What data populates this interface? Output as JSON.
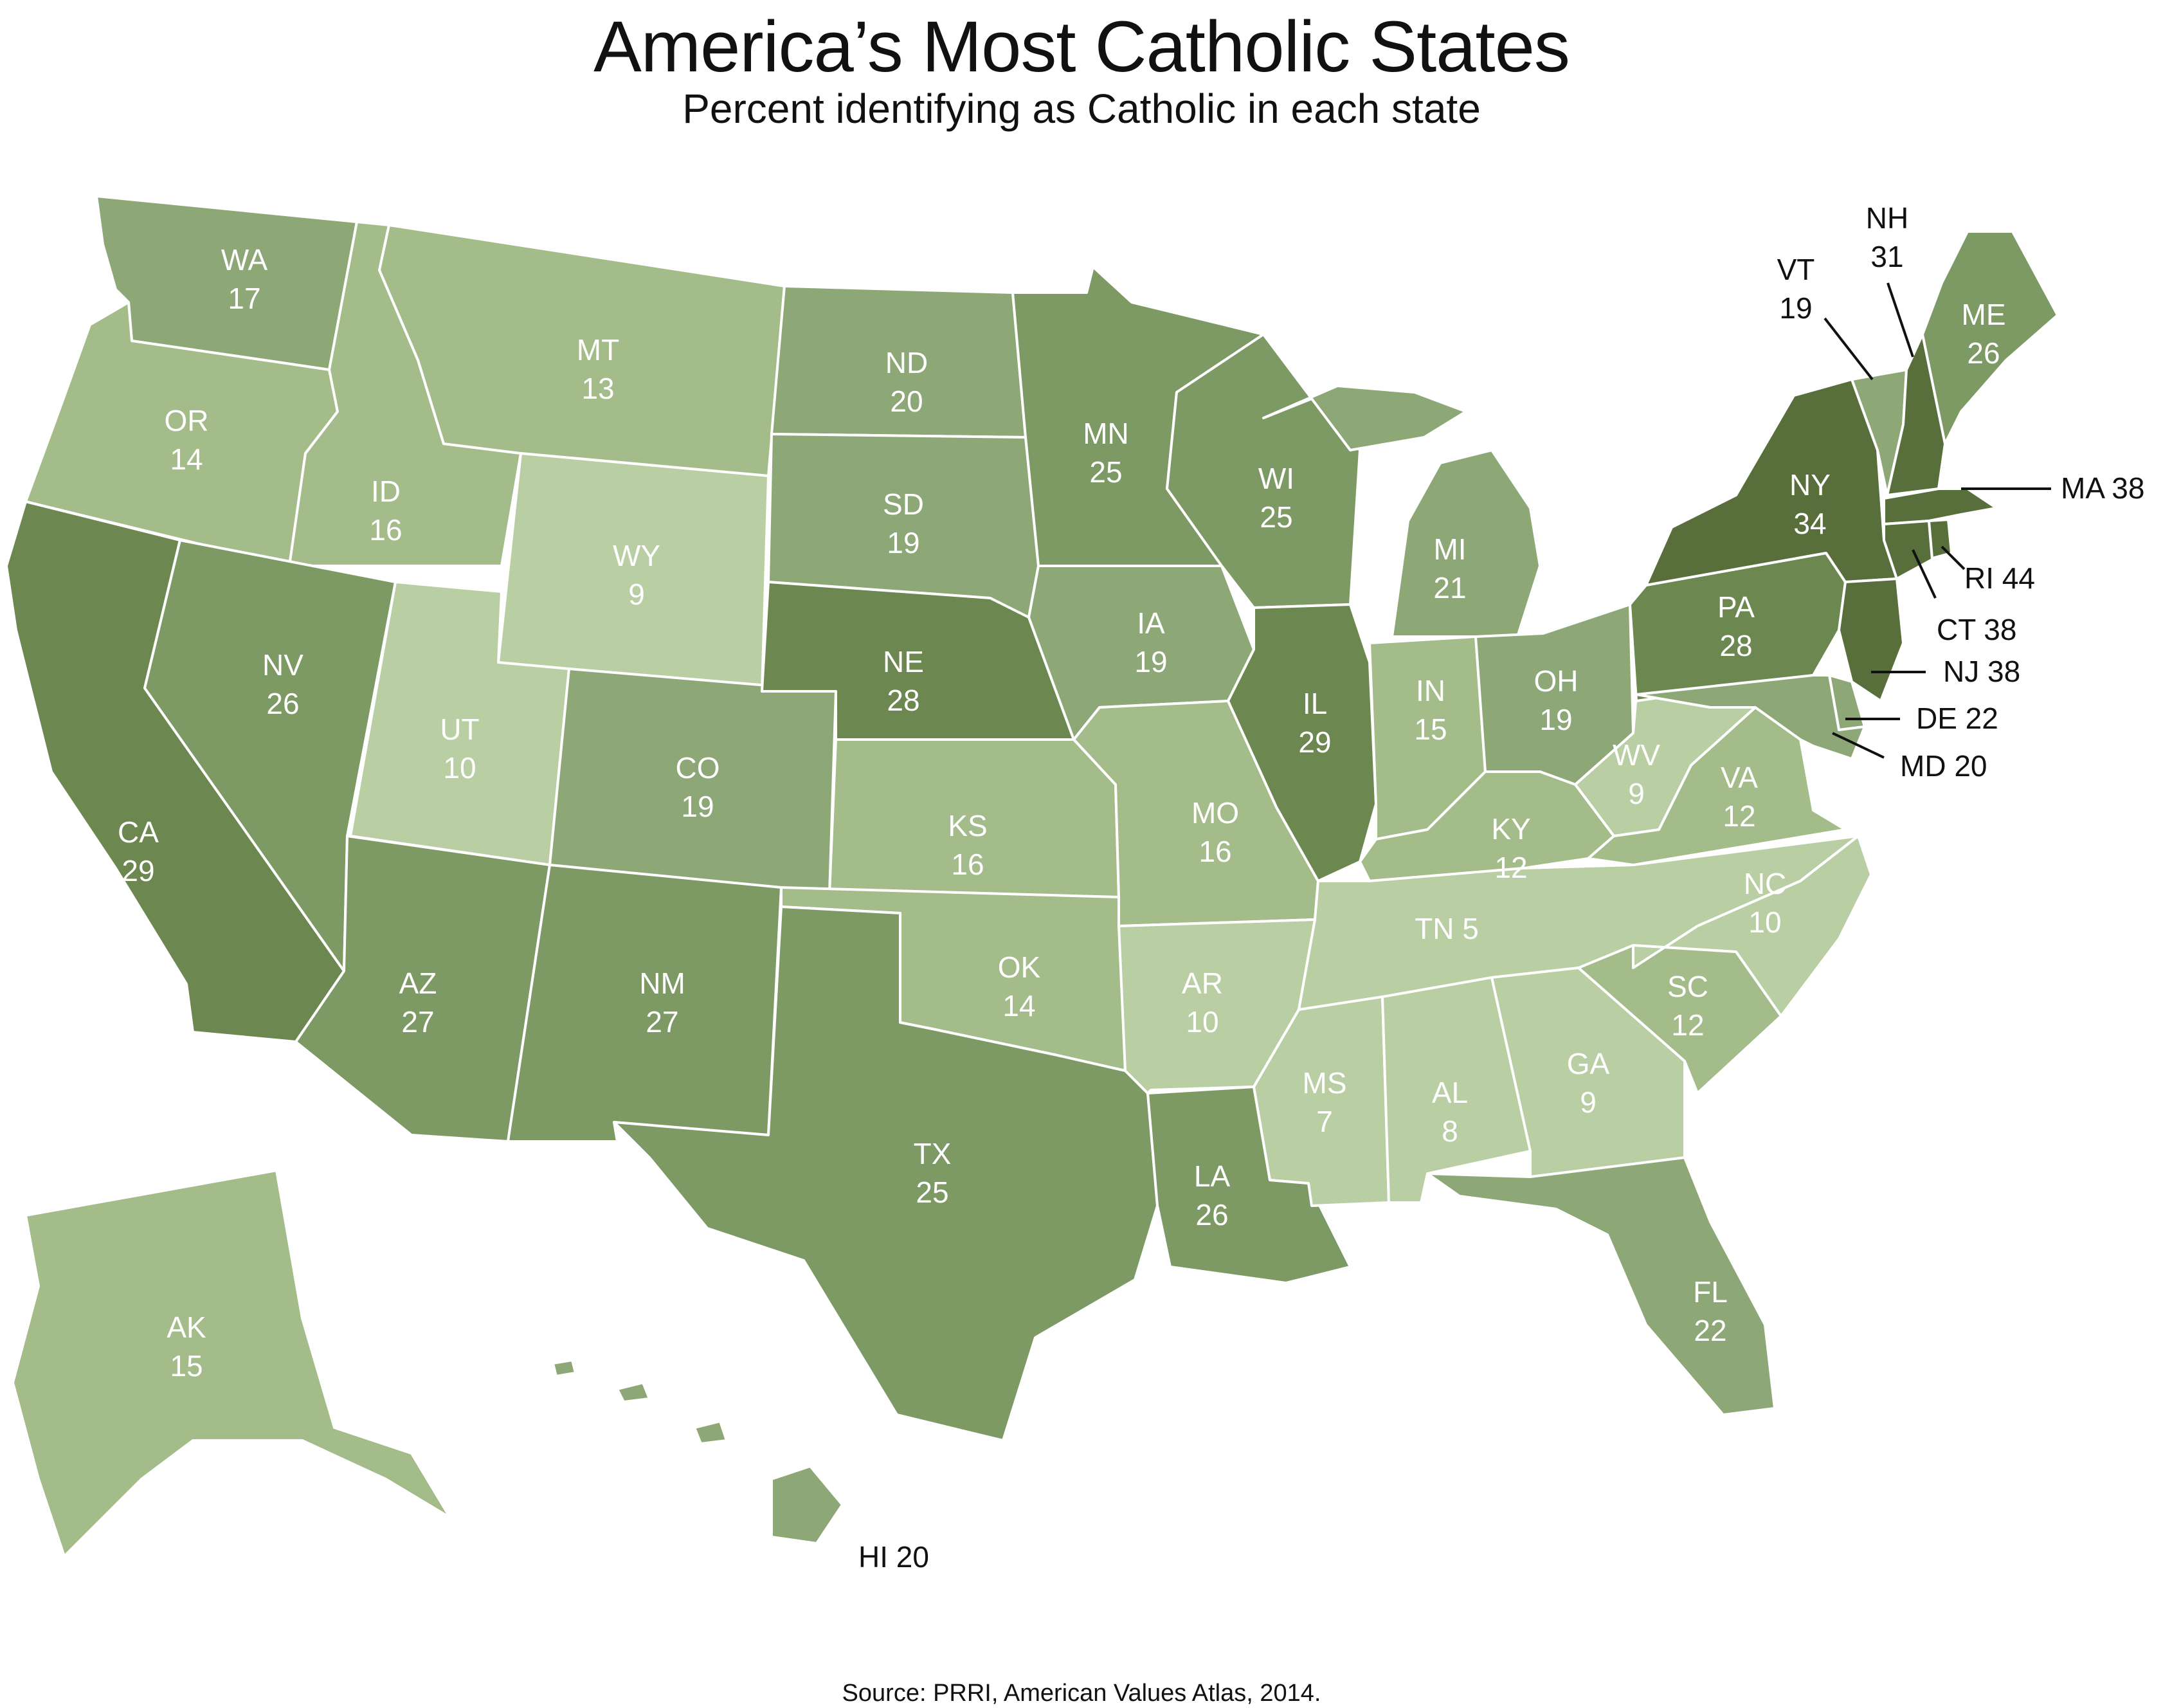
{
  "title": "America’s Most Catholic States",
  "subtitle": "Percent identifying as Catholic in each state",
  "source": "Source: PRRI, American Values Atlas, 2014.",
  "colors": {
    "lightest": "#b9cea3",
    "light": "#a4bb8a",
    "mid": "#8ea777",
    "dark": "#7d9964",
    "darker": "#6c874f",
    "darkest": "#586f3c"
  },
  "states": [
    {
      "abbr": "WA",
      "value": "17"
    },
    {
      "abbr": "OR",
      "value": "14"
    },
    {
      "abbr": "CA",
      "value": "29"
    },
    {
      "abbr": "ID",
      "value": "16"
    },
    {
      "abbr": "NV",
      "value": "26"
    },
    {
      "abbr": "MT",
      "value": "13"
    },
    {
      "abbr": "WY",
      "value": "9"
    },
    {
      "abbr": "UT",
      "value": "10"
    },
    {
      "abbr": "AZ",
      "value": "27"
    },
    {
      "abbr": "CO",
      "value": "19"
    },
    {
      "abbr": "NM",
      "value": "27"
    },
    {
      "abbr": "ND",
      "value": "20"
    },
    {
      "abbr": "SD",
      "value": "19"
    },
    {
      "abbr": "NE",
      "value": "28"
    },
    {
      "abbr": "KS",
      "value": "16"
    },
    {
      "abbr": "OK",
      "value": "14"
    },
    {
      "abbr": "TX",
      "value": "25"
    },
    {
      "abbr": "MN",
      "value": "25"
    },
    {
      "abbr": "IA",
      "value": "19"
    },
    {
      "abbr": "MO",
      "value": "16"
    },
    {
      "abbr": "AR",
      "value": "10"
    },
    {
      "abbr": "LA",
      "value": "26"
    },
    {
      "abbr": "WI",
      "value": "25"
    },
    {
      "abbr": "IL",
      "value": "29"
    },
    {
      "abbr": "MI",
      "value": "21"
    },
    {
      "abbr": "IN",
      "value": "15"
    },
    {
      "abbr": "OH",
      "value": "19"
    },
    {
      "abbr": "KY",
      "value": "12"
    },
    {
      "abbr": "TN",
      "value": "5"
    },
    {
      "abbr": "MS",
      "value": "7"
    },
    {
      "abbr": "AL",
      "value": "8"
    },
    {
      "abbr": "GA",
      "value": "9"
    },
    {
      "abbr": "FL",
      "value": "22"
    },
    {
      "abbr": "SC",
      "value": "12"
    },
    {
      "abbr": "NC",
      "value": "10"
    },
    {
      "abbr": "VA",
      "value": "12"
    },
    {
      "abbr": "WV",
      "value": "9"
    },
    {
      "abbr": "PA",
      "value": "28"
    },
    {
      "abbr": "NY",
      "value": "34"
    },
    {
      "abbr": "VT",
      "value": "19"
    },
    {
      "abbr": "NH",
      "value": "31"
    },
    {
      "abbr": "ME",
      "value": "26"
    },
    {
      "abbr": "MA",
      "value": "38"
    },
    {
      "abbr": "RI",
      "value": "44"
    },
    {
      "abbr": "CT",
      "value": "38"
    },
    {
      "abbr": "NJ",
      "value": "38"
    },
    {
      "abbr": "DE",
      "value": "22"
    },
    {
      "abbr": "MD",
      "value": "20"
    },
    {
      "abbr": "AK",
      "value": "15"
    },
    {
      "abbr": "HI",
      "value": "20"
    }
  ],
  "callouts": {
    "MA": "MA 38",
    "RI": "RI 44",
    "CT": "CT 38",
    "NJ": "NJ 38",
    "DE": "DE 22",
    "MD": "MD 20",
    "HI": "HI 20",
    "TN": "TN 5"
  }
}
